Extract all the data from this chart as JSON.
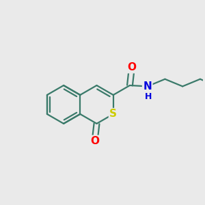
{
  "bg_color": "#eaeaea",
  "bond_color": "#3a7a6a",
  "bond_width": 1.6,
  "atom_colors": {
    "O": "#ff0000",
    "S": "#cccc00",
    "N": "#0000dd",
    "H": "#0000dd"
  },
  "font_size": 11,
  "font_size_H": 9,
  "figsize": [
    3.0,
    3.0
  ],
  "dpi": 100
}
